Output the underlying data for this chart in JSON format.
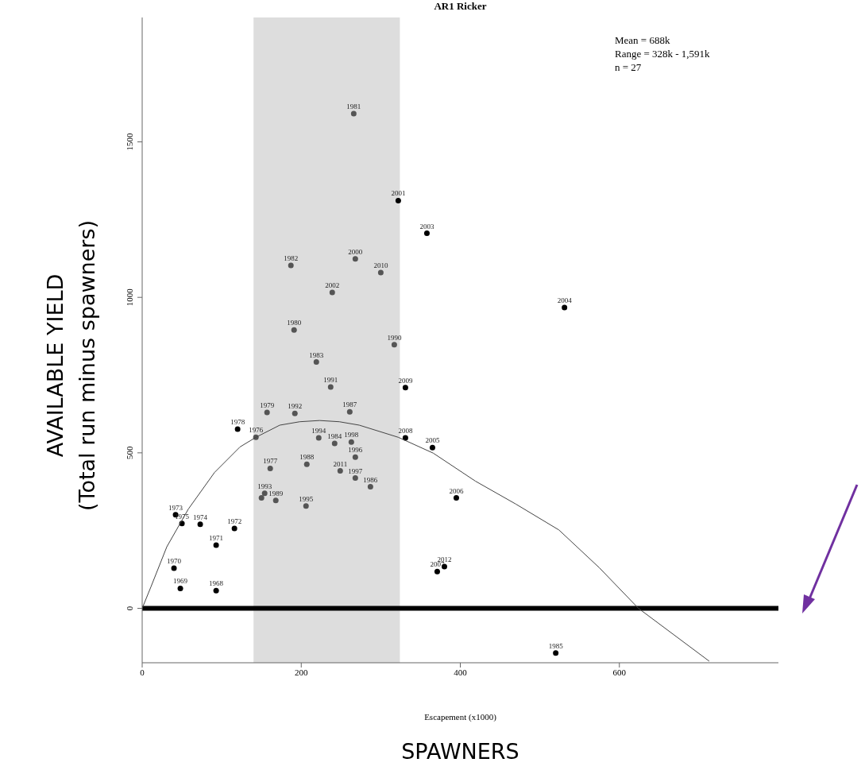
{
  "chart_data": {
    "type": "scatter",
    "title": "AR1 Ricker",
    "xlabel": "Escapement (x1000)",
    "ylabel": "AVAILABLE YIELD\n(Total run minus spawners)",
    "annotations": [
      "Mean = 688k",
      "Range = 328k - 1,591k",
      "n = 27",
      "SPAWNERS",
      {
        "text": "1968",
        "x": 93,
        "y": 57
      },
      {
        "text": "1969",
        "x": 48,
        "y": 64
      },
      {
        "text": "1970",
        "x": 40,
        "y": 129
      },
      {
        "text": "1971",
        "x": 93,
        "y": 203
      },
      {
        "text": "1972",
        "x": 116,
        "y": 257
      },
      {
        "text": "1973",
        "x": 42,
        "y": 301
      },
      {
        "text": "1975",
        "x": 50,
        "y": 273
      },
      {
        "text": "1974",
        "x": 73,
        "y": 270
      },
      {
        "text": "1976",
        "x": 143,
        "y": 550
      },
      {
        "text": "1977",
        "x": 161,
        "y": 450
      },
      {
        "text": "1978",
        "x": 120,
        "y": 576
      },
      {
        "text": "1979",
        "x": 157,
        "y": 630
      },
      {
        "text": "1980",
        "x": 191,
        "y": 895
      },
      {
        "text": "1981",
        "x": 266,
        "y": 1591
      },
      {
        "text": "1982",
        "x": 187,
        "y": 1103
      },
      {
        "text": "1983",
        "x": 219,
        "y": 792
      },
      {
        "text": "1984",
        "x": 242,
        "y": 530
      },
      {
        "text": "1985",
        "x": 520,
        "y": -144
      },
      {
        "text": "1986",
        "x": 287,
        "y": 391
      },
      {
        "text": "1987",
        "x": 261,
        "y": 632
      },
      {
        "text": "1988",
        "x": 207,
        "y": 463
      },
      {
        "text": "1989",
        "x": 168,
        "y": 347
      },
      {
        "text": "1990",
        "x": 317,
        "y": 848
      },
      {
        "text": "1991",
        "x": 237,
        "y": 712
      },
      {
        "text": "1992",
        "x": 192,
        "y": 627
      },
      {
        "text": "1993",
        "x": 154,
        "y": 370
      },
      {
        "text": "1994",
        "x": 222,
        "y": 548
      },
      {
        "text": "1995",
        "x": 206,
        "y": 329
      },
      {
        "text": "1996",
        "x": 268,
        "y": 486
      },
      {
        "text": "1997",
        "x": 268,
        "y": 419
      },
      {
        "text": "1998",
        "x": 263,
        "y": 535
      },
      {
        "text": "2000",
        "x": 268,
        "y": 1124
      },
      {
        "text": "2001",
        "x": 322,
        "y": 1311
      },
      {
        "text": "2002",
        "x": 239,
        "y": 1016
      },
      {
        "text": "2003",
        "x": 358,
        "y": 1206
      },
      {
        "text": "2004",
        "x": 531,
        "y": 967
      },
      {
        "text": "2005",
        "x": 365,
        "y": 517
      },
      {
        "text": "2006",
        "x": 395,
        "y": 355
      },
      {
        "text": "2007",
        "x": 371,
        "y": 118
      },
      {
        "text": "2008",
        "x": 331,
        "y": 548
      },
      {
        "text": "2009",
        "x": 331,
        "y": 710
      },
      {
        "text": "2010",
        "x": 300,
        "y": 1080
      },
      {
        "text": "2011",
        "x": 249,
        "y": 442
      },
      {
        "text": "2012",
        "x": 380,
        "y": 134
      }
    ],
    "xlim": [
      0,
      800
    ],
    "ylim": [
      -175,
      1900
    ],
    "xticks": [
      0,
      200,
      400,
      600
    ],
    "yticks": [
      0,
      500,
      1000,
      1500
    ],
    "marker": "circle",
    "series": [
      {
        "x": [
          93,
          48,
          40,
          93,
          116,
          42,
          50,
          73,
          143,
          161,
          120,
          157,
          191,
          266,
          187,
          219,
          242,
          520,
          287,
          261,
          207,
          168,
          317,
          237,
          192,
          154,
          222,
          206,
          268,
          268,
          263,
          150,
          268,
          322,
          239,
          358,
          531,
          365,
          395,
          371,
          331,
          331,
          300,
          249,
          380
        ],
        "values": [
          57,
          64,
          129,
          203,
          257,
          301,
          273,
          270,
          550,
          450,
          576,
          630,
          895,
          1591,
          1103,
          792,
          530,
          -144,
          391,
          632,
          463,
          347,
          848,
          712,
          627,
          370,
          548,
          329,
          486,
          419,
          535,
          355,
          1124,
          1311,
          1016,
          1206,
          967,
          517,
          355,
          118,
          548,
          710,
          1080,
          442,
          134
        ],
        "colors": [
          "#000000",
          "#000000",
          "#000000",
          "#000000",
          "#000000",
          "#000000",
          "#000000",
          "#000000",
          "#555555",
          "#555555",
          "#000000",
          "#555555",
          "#555555",
          "#555555",
          "#555555",
          "#555555",
          "#555555",
          "#000000",
          "#555555",
          "#555555",
          "#555555",
          "#555555",
          "#555555",
          "#555555",
          "#555555",
          "#555555",
          "#555555",
          "#555555",
          "#555555",
          "#555555",
          "#555555",
          "#555555",
          "#555555",
          "#000000",
          "#555555",
          "#000000",
          "#000000",
          "#000000",
          "#000000",
          "#000000",
          "#000000",
          "#000000",
          "#555555",
          "#555555",
          "#000000"
        ]
      },
      {
        "type": "line",
        "color": "#444444",
        "line_style": "solid",
        "marker": "none",
        "x": [
          0,
          11,
          31,
          58,
          91,
          123,
          143,
          173,
          198,
          223,
          248,
          273,
          322,
          366,
          419,
          470,
          524,
          575,
          624,
          713
        ],
        "values": [
          0,
          69,
          198,
          319,
          437,
          519,
          550,
          589,
          600,
          604,
          600,
          589,
          550,
          499,
          409,
          335,
          252,
          130,
          0,
          -170
        ]
      }
    ],
    "ref_lines": [
      {
        "axis": "y",
        "value": 0,
        "color": "#000000"
      }
    ],
    "bands": [
      {
        "axis": "x",
        "from": 140,
        "to": 324,
        "color": "#dddddd"
      }
    ]
  }
}
